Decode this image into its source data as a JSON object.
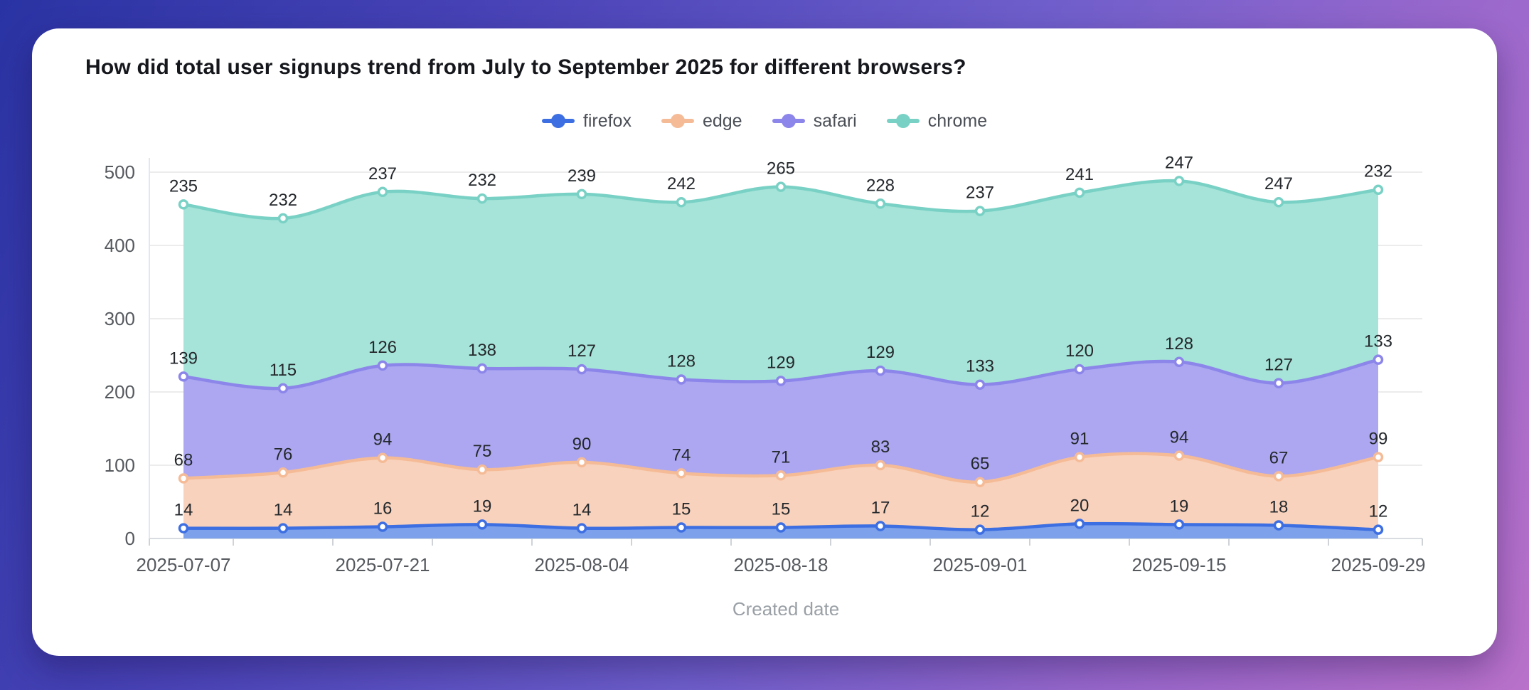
{
  "page": {
    "title": "How did total user signups trend from July to September 2025 for different browsers?"
  },
  "chart_data": {
    "type": "area",
    "stacked": true,
    "smooth": true,
    "title": "How did total user signups trend from July to September 2025 for different browsers?",
    "xlabel": "Created date",
    "ylabel": "",
    "ylim": [
      0,
      500
    ],
    "y_ticks": [
      0,
      100,
      200,
      300,
      400,
      500
    ],
    "grid": true,
    "legend_position": "top",
    "x": [
      "2025-07-07",
      "2025-07-14",
      "2025-07-21",
      "2025-07-28",
      "2025-08-04",
      "2025-08-11",
      "2025-08-18",
      "2025-08-25",
      "2025-09-01",
      "2025-09-08",
      "2025-09-15",
      "2025-09-22",
      "2025-09-29"
    ],
    "x_tick_labels_shown": [
      "2025-07-07",
      "2025-07-21",
      "2025-08-04",
      "2025-08-18",
      "2025-09-01",
      "2025-09-15",
      "2025-09-29"
    ],
    "label_every": 2,
    "series": [
      {
        "name": "firefox",
        "color": "#3d6fe2",
        "fill": "#7da1ea",
        "values": [
          14,
          14,
          16,
          19,
          14,
          15,
          15,
          17,
          12,
          20,
          19,
          18,
          12
        ]
      },
      {
        "name": "edge",
        "color": "#f5bb97",
        "fill": "#f8d2bc",
        "values": [
          68,
          76,
          94,
          75,
          90,
          74,
          71,
          83,
          65,
          91,
          94,
          67,
          99
        ]
      },
      {
        "name": "safari",
        "color": "#8c85ea",
        "fill": "#aca7f0",
        "values": [
          139,
          115,
          126,
          138,
          127,
          128,
          129,
          129,
          133,
          120,
          128,
          127,
          133
        ]
      },
      {
        "name": "chrome",
        "color": "#79d1c5",
        "fill": "#a6e3d8",
        "values": [
          235,
          232,
          237,
          232,
          239,
          242,
          265,
          228,
          237,
          241,
          247,
          247,
          232
        ]
      }
    ],
    "colors": {
      "value_label": "#24282c",
      "axis_label": "#55595e",
      "axis_title": "#9aa0a6",
      "gridline": "#ececec",
      "axis_line": "#d9dde2"
    }
  }
}
